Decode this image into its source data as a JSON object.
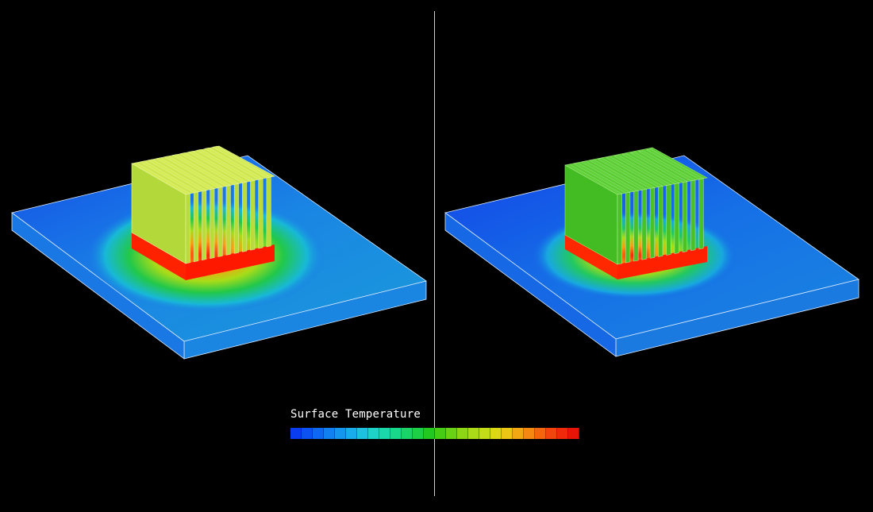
{
  "legend": {
    "title": "Surface Temperature",
    "colors": [
      "#0a3cf0",
      "#0c52f2",
      "#0e68f2",
      "#1180f0",
      "#1496ee",
      "#18acea",
      "#1cc2e0",
      "#1ed2c8",
      "#1ad8aa",
      "#18d88a",
      "#1ad468",
      "#1ccf44",
      "#22c820",
      "#46cc14",
      "#6ad214",
      "#8cd616",
      "#aada18",
      "#c4dc18",
      "#dcd816",
      "#ecc614",
      "#f2a812",
      "#f48810",
      "#f4660e",
      "#f2440c",
      "#ee2a0a",
      "#e81408"
    ]
  },
  "models": [
    {
      "id": "left-model",
      "fin_color": "#b9dc3a",
      "fin_top": "#d6ec56",
      "side_color": "#a6d22e",
      "plate_color": "#1a78e6"
    },
    {
      "id": "right-model",
      "fin_color": "#4ac224",
      "fin_top": "#62d23a",
      "side_color": "#3cae1c",
      "plate_color": "#1466e6"
    }
  ]
}
